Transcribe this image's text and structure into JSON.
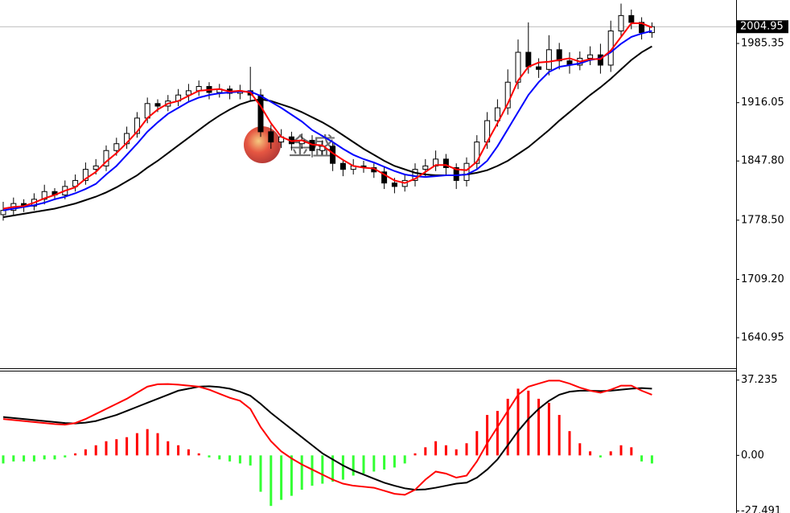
{
  "chart_data": [
    {
      "type": "candlestick",
      "watermark": "金盛",
      "ylim": [
        1605.2,
        2036.2
      ],
      "yticks": [
        1985.35,
        1916.05,
        {
          "value": 1847.8,
          "label": "1847.80"
        },
        {
          "value": 1778.5,
          "label": "1778.50"
        },
        {
          "value": 1709.2,
          "label": "1709.20"
        },
        1640.95
      ],
      "current_price": 2004.95,
      "up_color": "#ffffff",
      "down_color": "#000000",
      "open": [
        1785,
        1790,
        1798,
        1795,
        1803,
        1812,
        1808,
        1818,
        1825,
        1838,
        1842,
        1860,
        1868,
        1880,
        1898,
        1915,
        1912,
        1918,
        1925,
        1930,
        1935,
        1928,
        1932,
        1927,
        1930,
        1925,
        1882,
        1870,
        1876,
        1868,
        1872,
        1860,
        1865,
        1845,
        1838,
        1842,
        1840,
        1835,
        1822,
        1818,
        1825,
        1838,
        1842,
        1850,
        1840,
        1825,
        1845,
        1870,
        1895,
        1910,
        1940,
        1975,
        1958,
        1955,
        1978,
        1965,
        1960,
        1968,
        1972,
        1960,
        2000,
        2018,
        2010,
        1998
      ],
      "high": [
        1800,
        1805,
        1803,
        1810,
        1820,
        1816,
        1825,
        1832,
        1846,
        1850,
        1866,
        1875,
        1888,
        1905,
        1922,
        1920,
        1925,
        1932,
        1938,
        1942,
        1940,
        1938,
        1936,
        1937,
        1958,
        1932,
        1890,
        1885,
        1882,
        1880,
        1878,
        1872,
        1870,
        1850,
        1850,
        1848,
        1845,
        1840,
        1828,
        1832,
        1845,
        1850,
        1860,
        1856,
        1845,
        1852,
        1878,
        1905,
        1920,
        1955,
        1990,
        2010,
        1968,
        1995,
        1986,
        1975,
        1976,
        1982,
        1985,
        2012,
        2032,
        2025,
        2016,
        2010
      ],
      "low": [
        1778,
        1784,
        1788,
        1790,
        1797,
        1802,
        1803,
        1812,
        1820,
        1832,
        1836,
        1854,
        1862,
        1875,
        1892,
        1905,
        1906,
        1912,
        1918,
        1924,
        1920,
        1922,
        1920,
        1920,
        1918,
        1876,
        1862,
        1863,
        1860,
        1862,
        1852,
        1855,
        1836,
        1830,
        1832,
        1834,
        1828,
        1815,
        1810,
        1812,
        1818,
        1830,
        1836,
        1832,
        1815,
        1818,
        1838,
        1862,
        1888,
        1902,
        1932,
        1950,
        1945,
        1948,
        1955,
        1950,
        1954,
        1960,
        1950,
        1952,
        1992,
        2002,
        1990,
        1992
      ],
      "close": [
        1790,
        1798,
        1795,
        1803,
        1812,
        1808,
        1818,
        1825,
        1838,
        1842,
        1860,
        1868,
        1880,
        1898,
        1915,
        1912,
        1918,
        1925,
        1930,
        1935,
        1928,
        1932,
        1927,
        1930,
        1925,
        1882,
        1870,
        1876,
        1868,
        1872,
        1860,
        1865,
        1845,
        1838,
        1842,
        1840,
        1835,
        1822,
        1818,
        1825,
        1838,
        1842,
        1850,
        1840,
        1825,
        1845,
        1870,
        1895,
        1910,
        1940,
        1975,
        1958,
        1955,
        1978,
        1965,
        1960,
        1968,
        1972,
        1960,
        2000,
        2018,
        2010,
        1998,
        2005
      ],
      "series": [
        {
          "color": "#000000",
          "values": [
            1782,
            1784,
            1786,
            1788,
            1790,
            1792,
            1795,
            1798,
            1802,
            1806,
            1811,
            1817,
            1824,
            1831,
            1840,
            1848,
            1857,
            1866,
            1875,
            1884,
            1893,
            1901,
            1908,
            1914,
            1918,
            1920,
            1918,
            1914,
            1910,
            1905,
            1899,
            1893,
            1886,
            1878,
            1870,
            1862,
            1855,
            1848,
            1842,
            1838,
            1834,
            1832,
            1831,
            1831,
            1831,
            1832,
            1834,
            1837,
            1842,
            1848,
            1856,
            1864,
            1874,
            1884,
            1895,
            1905,
            1915,
            1925,
            1934,
            1944,
            1955,
            1966,
            1975,
            1982
          ]
        },
        {
          "color": "#0000ff",
          "values": [
            1790,
            1792,
            1794,
            1796,
            1799,
            1803,
            1806,
            1810,
            1815,
            1821,
            1832,
            1842,
            1855,
            1868,
            1882,
            1893,
            1903,
            1910,
            1917,
            1922,
            1925,
            1927,
            1928,
            1929,
            1929,
            1924,
            1917,
            1910,
            1902,
            1894,
            1884,
            1877,
            1870,
            1862,
            1855,
            1850,
            1846,
            1841,
            1836,
            1832,
            1830,
            1829,
            1830,
            1831,
            1831,
            1832,
            1838,
            1848,
            1865,
            1885,
            1905,
            1925,
            1940,
            1952,
            1958,
            1960,
            1962,
            1966,
            1968,
            1975,
            1985,
            1993,
            1997,
            2000
          ]
        },
        {
          "color": "#ff0000",
          "values": [
            1792,
            1794,
            1795,
            1799,
            1804,
            1808,
            1813,
            1817,
            1827,
            1835,
            1847,
            1857,
            1869,
            1882,
            1898,
            1908,
            1915,
            1918,
            1924,
            1930,
            1931,
            1932,
            1929,
            1930,
            1928,
            1912,
            1892,
            1876,
            1871,
            1872,
            1867,
            1866,
            1857,
            1849,
            1842,
            1840,
            1839,
            1832,
            1825,
            1822,
            1827,
            1835,
            1843,
            1843,
            1838,
            1837,
            1847,
            1870,
            1892,
            1915,
            1942,
            1958,
            1963,
            1964,
            1966,
            1968,
            1964,
            1967,
            1967,
            1977,
            1993,
            2009,
            2009,
            2004
          ]
        }
      ]
    },
    {
      "type": "macd",
      "ylim": [
        -28.5,
        41.5
      ],
      "yticks": [
        37.235,
        {
          "value": 0,
          "label": "0.00"
        },
        -27.491
      ],
      "pos_color": "#ff0000",
      "neg_color": "#33ff33",
      "values": [
        -4,
        -3,
        -3,
        -3,
        -2,
        -2,
        -1,
        1,
        3,
        5,
        7,
        8,
        9,
        11,
        13,
        11,
        7,
        5,
        3,
        1,
        -1,
        -2,
        -3,
        -4,
        -5,
        -18,
        -25,
        -22,
        -20,
        -17,
        -15,
        -14,
        -13,
        -12,
        -10,
        -9,
        -8,
        -7,
        -6,
        -4,
        1,
        4,
        7,
        5,
        3,
        6,
        12,
        20,
        22,
        28,
        33,
        32,
        28,
        26,
        20,
        12,
        6,
        2,
        -1,
        2,
        5,
        4,
        -3,
        -4
      ],
      "series": [
        {
          "color": "#000000",
          "values": [
            19,
            18.5,
            18,
            17.5,
            17,
            16.5,
            16,
            15.8,
            16.2,
            17,
            18.5,
            20,
            22,
            24,
            26,
            28,
            30,
            32,
            33,
            34,
            34.2,
            33.8,
            33,
            31.5,
            29.5,
            25.5,
            21,
            17,
            13,
            9,
            5,
            1,
            -2,
            -5,
            -7.5,
            -9.5,
            -11.5,
            -13.5,
            -15,
            -16.3,
            -17,
            -16.8,
            -16,
            -15,
            -14,
            -13.5,
            -11,
            -7,
            -2,
            5,
            12,
            18,
            23,
            27,
            30,
            31.5,
            32,
            32,
            31.8,
            32,
            32.5,
            33,
            33.3,
            33
          ]
        },
        {
          "color": "#ff0000",
          "values": [
            18,
            17.5,
            17,
            16.5,
            16,
            15.5,
            15.2,
            16,
            18,
            20.5,
            23,
            25.5,
            28,
            31,
            34,
            35.2,
            35.3,
            35,
            34.5,
            34,
            32.5,
            30.5,
            28.5,
            27,
            23,
            14,
            7,
            2,
            -1.5,
            -4.5,
            -7,
            -9.5,
            -12,
            -14,
            -15,
            -15.5,
            -16,
            -17.5,
            -19,
            -19.5,
            -17,
            -12,
            -8,
            -9,
            -11,
            -10,
            -3,
            6,
            14,
            22,
            30,
            34,
            35.5,
            37,
            37,
            35.5,
            33.5,
            32,
            31,
            32.5,
            34.5,
            34.5,
            32,
            30
          ]
        }
      ]
    }
  ]
}
